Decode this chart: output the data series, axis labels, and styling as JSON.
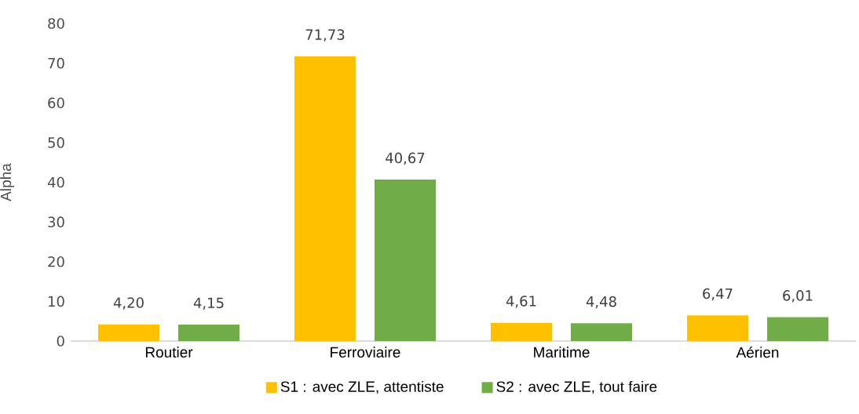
{
  "chart_data": {
    "type": "bar",
    "ylabel": "Alpha",
    "categories": [
      "Routier",
      "Ferroviaire",
      "Maritime",
      "Aérien"
    ],
    "series": [
      {
        "name": "S1 : avec ZLE, attentiste",
        "color": "#ffc000",
        "values": [
          4.2,
          71.73,
          4.61,
          6.47
        ],
        "value_labels": [
          "4,20",
          "71,73",
          "4,61",
          "6,47"
        ]
      },
      {
        "name": "S2 : avec ZLE, tout faire",
        "color": "#70ad47",
        "values": [
          4.15,
          40.67,
          4.48,
          6.01
        ],
        "value_labels": [
          "4,15",
          "40,67",
          "4,48",
          "6,01"
        ]
      }
    ],
    "ylim": [
      0,
      80
    ],
    "yticks": [
      0,
      10,
      20,
      30,
      40,
      50,
      60,
      70,
      80
    ],
    "legend": "bottom"
  }
}
